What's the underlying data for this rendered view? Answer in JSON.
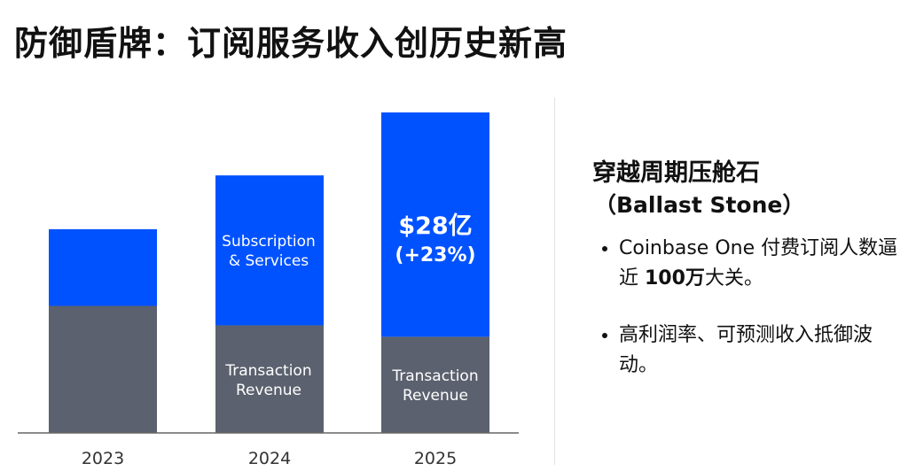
{
  "title": "防御盾牌：订阅服务收入创历史新高",
  "side": {
    "heading": "穿越周期压舱石",
    "subheading": "（Ballast Stone）",
    "bullets": [
      {
        "text": "Coinbase One 付费订阅人数逼近 ",
        "bold": "100万",
        "tail": "大关。"
      },
      {
        "text": "高利润率、可预测收入抵御波动。",
        "bold": "",
        "tail": ""
      }
    ]
  },
  "chart_data": {
    "type": "bar",
    "stacked": true,
    "categories": [
      "2023",
      "2024",
      "2025"
    ],
    "series": [
      {
        "name": "Transaction Revenue",
        "values": [
          11.1,
          9.4,
          8.4
        ],
        "color": "#5b616e"
      },
      {
        "name": "Subscription & Services",
        "values": [
          6.7,
          13.1,
          19.6
        ],
        "color": "#0052ff"
      }
    ],
    "ylim": [
      0,
      28
    ],
    "grid": false,
    "annotations": {
      "subscription_label": [
        "Subscription",
        "& Services"
      ],
      "transaction_label": [
        "Transaction",
        "Revenue"
      ],
      "total_2025": "$28亿",
      "growth_2025": "(+23%)"
    }
  }
}
